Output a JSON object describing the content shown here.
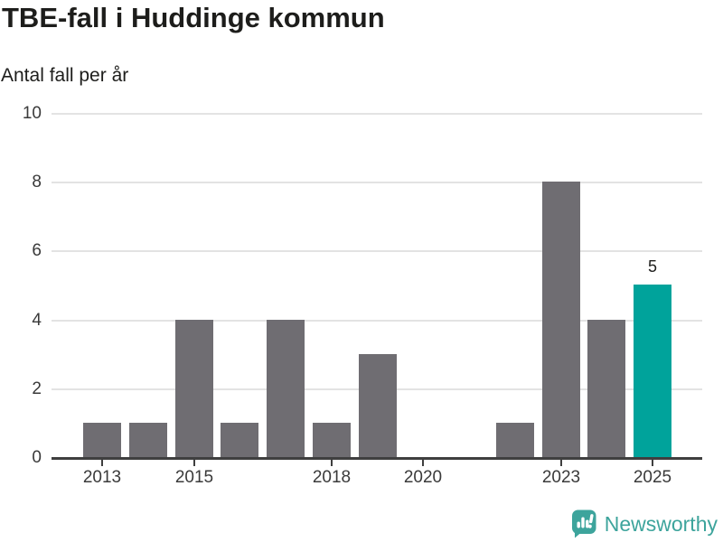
{
  "chart_data": {
    "type": "bar",
    "title": "TBE-fall i Huddinge kommun",
    "ylabel": "Antal fall per år",
    "xlabel": "",
    "categories": [
      2013,
      2014,
      2015,
      2016,
      2017,
      2018,
      2019,
      2020,
      2021,
      2022,
      2023,
      2024,
      2025
    ],
    "values": [
      1,
      1,
      4,
      1,
      4,
      1,
      3,
      0,
      0,
      1,
      8,
      4,
      5
    ],
    "ylim": [
      0,
      10
    ],
    "yticks": [
      0,
      2,
      4,
      6,
      8,
      10
    ],
    "xtick_labels": [
      "2013",
      "2015",
      "2018",
      "2020",
      "2023",
      "2025"
    ],
    "grid": "horizontal",
    "legend": "none",
    "highlight": {
      "category": 2025,
      "value": 5,
      "label": "5"
    },
    "colors": {
      "bar": "#6f6d72",
      "highlight_bar": "#00a39b",
      "axis_line": "#3f3f3f",
      "gridline": "#e3e3e3",
      "title_text": "#1d1d1b",
      "tick_text": "#3a3a3a"
    }
  },
  "footer": {
    "brand": "Newsworthy",
    "brand_color": "#3da49c"
  }
}
